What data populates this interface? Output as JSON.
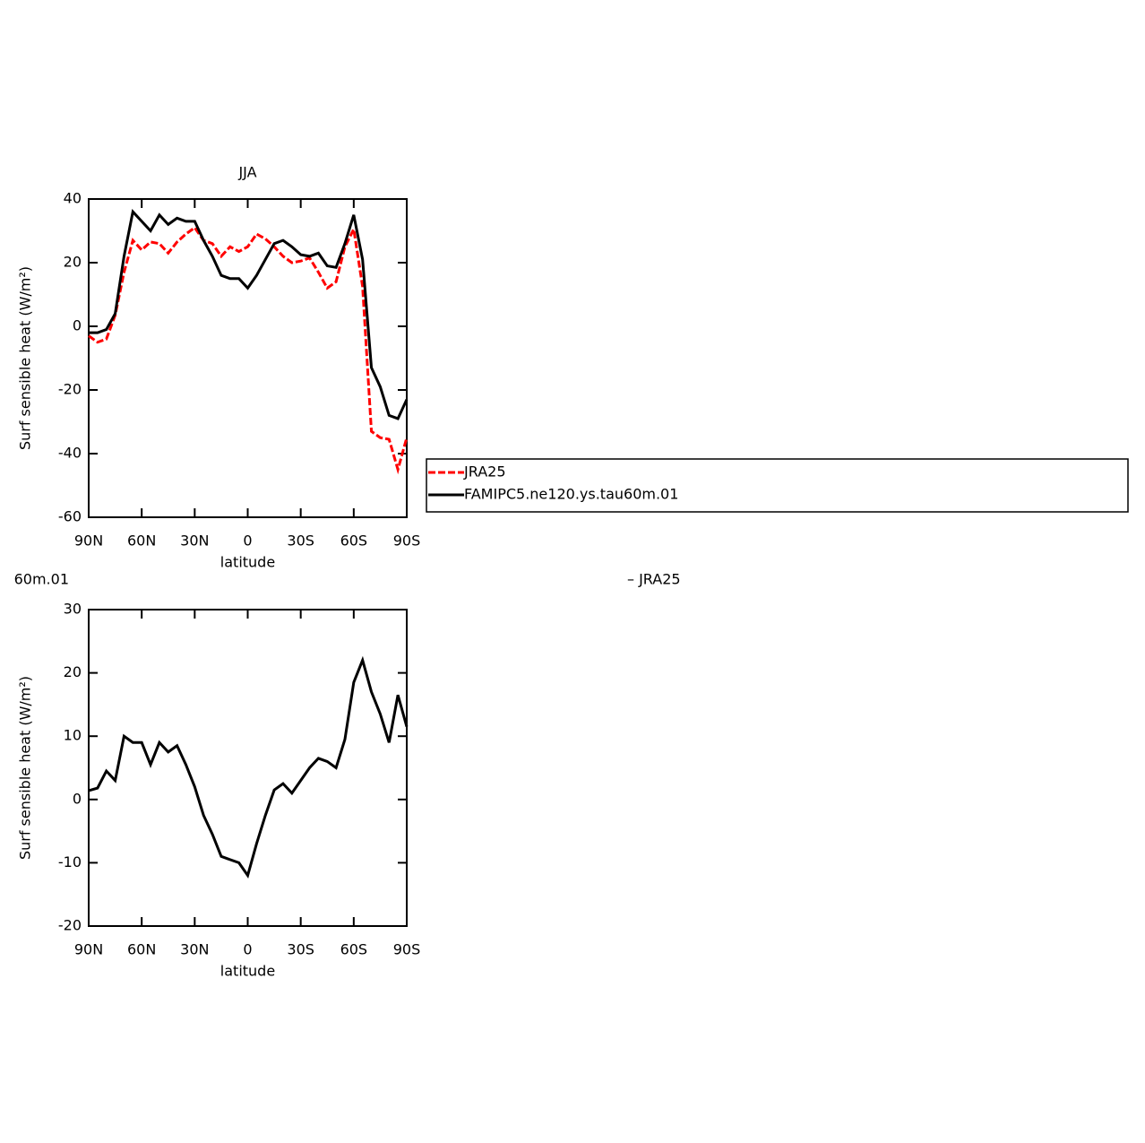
{
  "chart_data": [
    {
      "type": "line",
      "title": "JJA",
      "xlabel": "latitude",
      "ylabel": "Surf sensible heat (W/m²)",
      "x": [
        90,
        85,
        80,
        75,
        70,
        65,
        60,
        55,
        50,
        45,
        40,
        35,
        30,
        25,
        20,
        15,
        10,
        5,
        0,
        -5,
        -10,
        -15,
        -20,
        -25,
        -30,
        -35,
        -40,
        -45,
        -50,
        -55,
        -60,
        -65,
        -70,
        -75,
        -80,
        -85,
        -90
      ],
      "xlim": [
        90,
        -90
      ],
      "xticks": [
        {
          "value": 90,
          "label": "90N"
        },
        {
          "value": 60,
          "label": "60N"
        },
        {
          "value": 30,
          "label": "30N"
        },
        0,
        {
          "value": -30,
          "label": "30S"
        },
        {
          "value": -60,
          "label": "60S"
        },
        {
          "value": -90,
          "label": "90S"
        }
      ],
      "ylim": [
        -60,
        40
      ],
      "yticks": [
        40,
        20,
        0,
        -20,
        -40,
        -60
      ],
      "legend_position": "outside-right",
      "series": [
        {
          "name": "JRA25",
          "color": "#ff0000",
          "dashed": true,
          "values": [
            -3,
            -5,
            -4,
            3.5,
            17,
            27,
            24,
            26.5,
            26,
            23,
            26.5,
            29,
            31,
            27,
            26,
            22,
            25,
            23.5,
            25,
            29,
            27.5,
            25,
            22,
            20,
            20.5,
            21.5,
            17,
            12,
            14,
            25,
            30.5,
            12.5,
            -33,
            -35,
            -35.5,
            -45,
            -35
          ]
        },
        {
          "name": "FAMIPC5.ne120.ys.tau60m.01",
          "color": "#000000",
          "dashed": false,
          "values": [
            -2,
            -2,
            -1,
            4,
            22,
            36,
            33,
            30,
            35,
            32,
            34,
            33,
            33,
            27,
            22,
            16,
            15,
            15,
            12,
            16,
            21,
            26,
            27,
            25,
            22.5,
            22,
            23,
            19,
            18.5,
            26,
            35,
            21,
            -13,
            -19,
            -28,
            -29,
            -23
          ]
        }
      ]
    },
    {
      "type": "line",
      "title_parts": [
        "60m.01",
        "– JRA25"
      ],
      "xlabel": "latitude",
      "ylabel": "Surf sensible heat (W/m²)",
      "x": [
        90,
        85,
        80,
        75,
        70,
        65,
        60,
        55,
        50,
        45,
        40,
        35,
        30,
        25,
        20,
        15,
        10,
        5,
        0,
        -5,
        -10,
        -15,
        -20,
        -25,
        -30,
        -35,
        -40,
        -45,
        -50,
        -55,
        -60,
        -65,
        -70,
        -75,
        -80,
        -85,
        -90
      ],
      "xlim": [
        90,
        -90
      ],
      "xticks": [
        {
          "value": 90,
          "label": "90N"
        },
        {
          "value": 60,
          "label": "60N"
        },
        {
          "value": 30,
          "label": "30N"
        },
        0,
        {
          "value": -30,
          "label": "30S"
        },
        {
          "value": -60,
          "label": "60S"
        },
        {
          "value": -90,
          "label": "90S"
        }
      ],
      "ylim": [
        -20,
        30
      ],
      "yticks": [
        30,
        20,
        10,
        0,
        -10,
        -20
      ],
      "series": [
        {
          "color": "#000000",
          "dashed": false,
          "values": [
            1.4,
            1.8,
            4.5,
            3,
            10,
            9,
            9,
            5.5,
            9,
            7.5,
            8.5,
            5.5,
            2,
            -2.5,
            -5.5,
            -9,
            -9.5,
            -10,
            -12,
            -7,
            -2.5,
            1.5,
            2.5,
            1,
            3,
            5,
            6.5,
            6,
            5,
            9.5,
            18.5,
            22,
            17,
            13.5,
            9,
            16.5,
            11.5
          ]
        }
      ]
    }
  ]
}
